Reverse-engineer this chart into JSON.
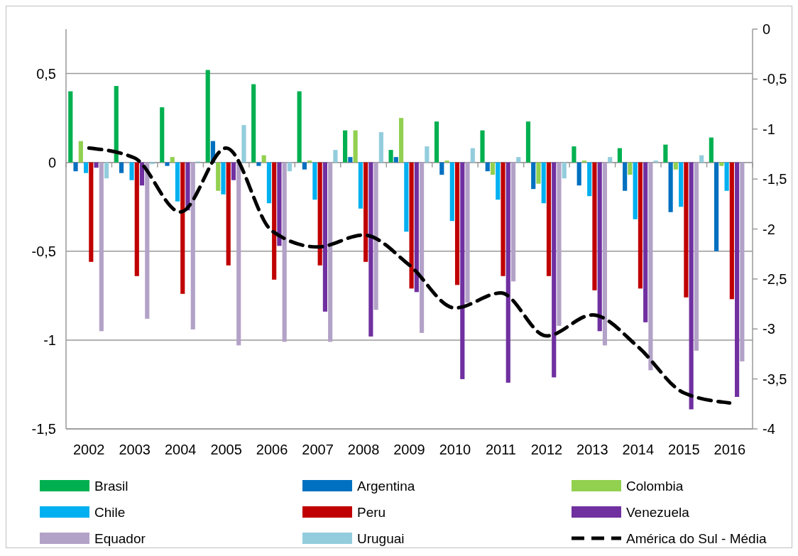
{
  "chart_data": {
    "type": "bar",
    "categories": [
      "2002",
      "2003",
      "2004",
      "2005",
      "2006",
      "2007",
      "2008",
      "2009",
      "2010",
      "2011",
      "2012",
      "2013",
      "2014",
      "2015",
      "2016"
    ],
    "series": [
      {
        "name": "Brasil",
        "color": "#00b050",
        "values": [
          0.4,
          0.43,
          0.31,
          0.52,
          0.44,
          0.4,
          0.18,
          0.07,
          0.23,
          0.18,
          0.23,
          0.09,
          0.08,
          0.1,
          0.14
        ]
      },
      {
        "name": "Argentina",
        "color": "#0070c0",
        "values": [
          -0.05,
          -0.06,
          -0.02,
          0.12,
          -0.02,
          -0.04,
          0.03,
          0.03,
          -0.07,
          -0.05,
          -0.15,
          -0.13,
          -0.16,
          -0.28,
          -0.5
        ]
      },
      {
        "name": "Colombia",
        "color": "#92d050",
        "values": [
          0.12,
          0,
          0.03,
          -0.16,
          0.04,
          0.01,
          0.18,
          0.25,
          0.01,
          -0.07,
          -0.12,
          0.01,
          -0.07,
          -0.04,
          -0.02
        ]
      },
      {
        "name": "Chile",
        "color": "#00b0f0",
        "values": [
          -0.06,
          -0.1,
          -0.22,
          -0.18,
          -0.23,
          -0.21,
          -0.26,
          -0.39,
          -0.33,
          -0.21,
          -0.23,
          -0.19,
          -0.32,
          -0.25,
          -0.16
        ]
      },
      {
        "name": "Peru",
        "color": "#c00000",
        "values": [
          -0.56,
          -0.64,
          -0.74,
          -0.58,
          -0.66,
          -0.58,
          -0.56,
          -0.71,
          -0.69,
          -0.64,
          -0.64,
          -0.72,
          -0.71,
          -0.76,
          -0.77
        ]
      },
      {
        "name": "Venezuela",
        "color": "#7030a0",
        "values": [
          -0.03,
          -0.13,
          -0.27,
          -0.1,
          -0.47,
          -0.84,
          -0.98,
          -0.73,
          -1.22,
          -1.24,
          -1.21,
          -0.95,
          -0.9,
          -1.39,
          -1.32
        ]
      },
      {
        "name": "Equador",
        "color": "#b3a2c7",
        "values": [
          -0.95,
          -0.88,
          -0.94,
          -1.03,
          -1.01,
          -1.01,
          -0.83,
          -0.96,
          -0.79,
          -0.67,
          -0.92,
          -1.03,
          -1.17,
          -1.06,
          -1.12
        ]
      },
      {
        "name": "Uruguai",
        "color": "#93cddd",
        "values": [
          -0.09,
          -0.01,
          0.005,
          0.21,
          -0.05,
          0.07,
          0.17,
          0.09,
          0.08,
          0.03,
          -0.09,
          0.03,
          0.01,
          0.04,
          0
        ]
      },
      {
        "name": "América do Sul - Média",
        "type": "line",
        "axis": "y2",
        "color": "#000000",
        "line_style": "dashed",
        "values": [
          -1.19,
          -1.29,
          -1.83,
          -1.19,
          -2.02,
          -2.18,
          -2.06,
          -2.36,
          -2.79,
          -2.64,
          -3.07,
          -2.86,
          -3.18,
          -3.64,
          -3.74
        ]
      }
    ],
    "ylim": [
      -1.5,
      0.75
    ],
    "yticks": [
      {
        "value": -1.5,
        "label": "-1,5"
      },
      -1,
      {
        "value": -0.5,
        "label": "-0,5"
      },
      0,
      {
        "value": 0.5,
        "label": "0,5"
      }
    ],
    "y2lim": [
      -4,
      0
    ],
    "y2ticks": [
      -4,
      {
        "value": -3.5,
        "label": "-3,5"
      },
      -3,
      {
        "value": -2.5,
        "label": "-2,5"
      },
      -2,
      {
        "value": -1.5,
        "label": "-1,5"
      },
      -1,
      {
        "value": -0.5,
        "label": "-0,5"
      },
      0
    ],
    "grid": "y",
    "legend": "bottom"
  }
}
